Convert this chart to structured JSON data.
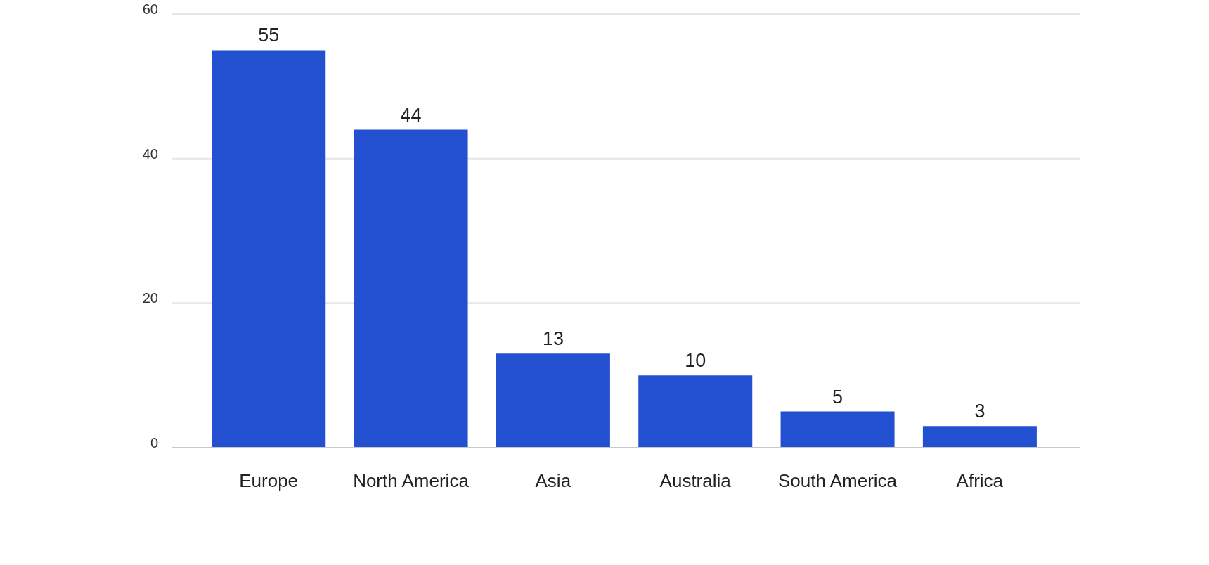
{
  "chart_data": {
    "type": "bar",
    "categories": [
      "Europe",
      "North America",
      "Asia",
      "Australia",
      "South America",
      "Africa"
    ],
    "values": [
      55,
      44,
      13,
      10,
      5,
      3
    ],
    "color": "#2250d0",
    "ylim": [
      0,
      60
    ],
    "yticks": [
      0,
      20,
      40,
      60
    ],
    "grid": "y",
    "data_labels": true
  }
}
